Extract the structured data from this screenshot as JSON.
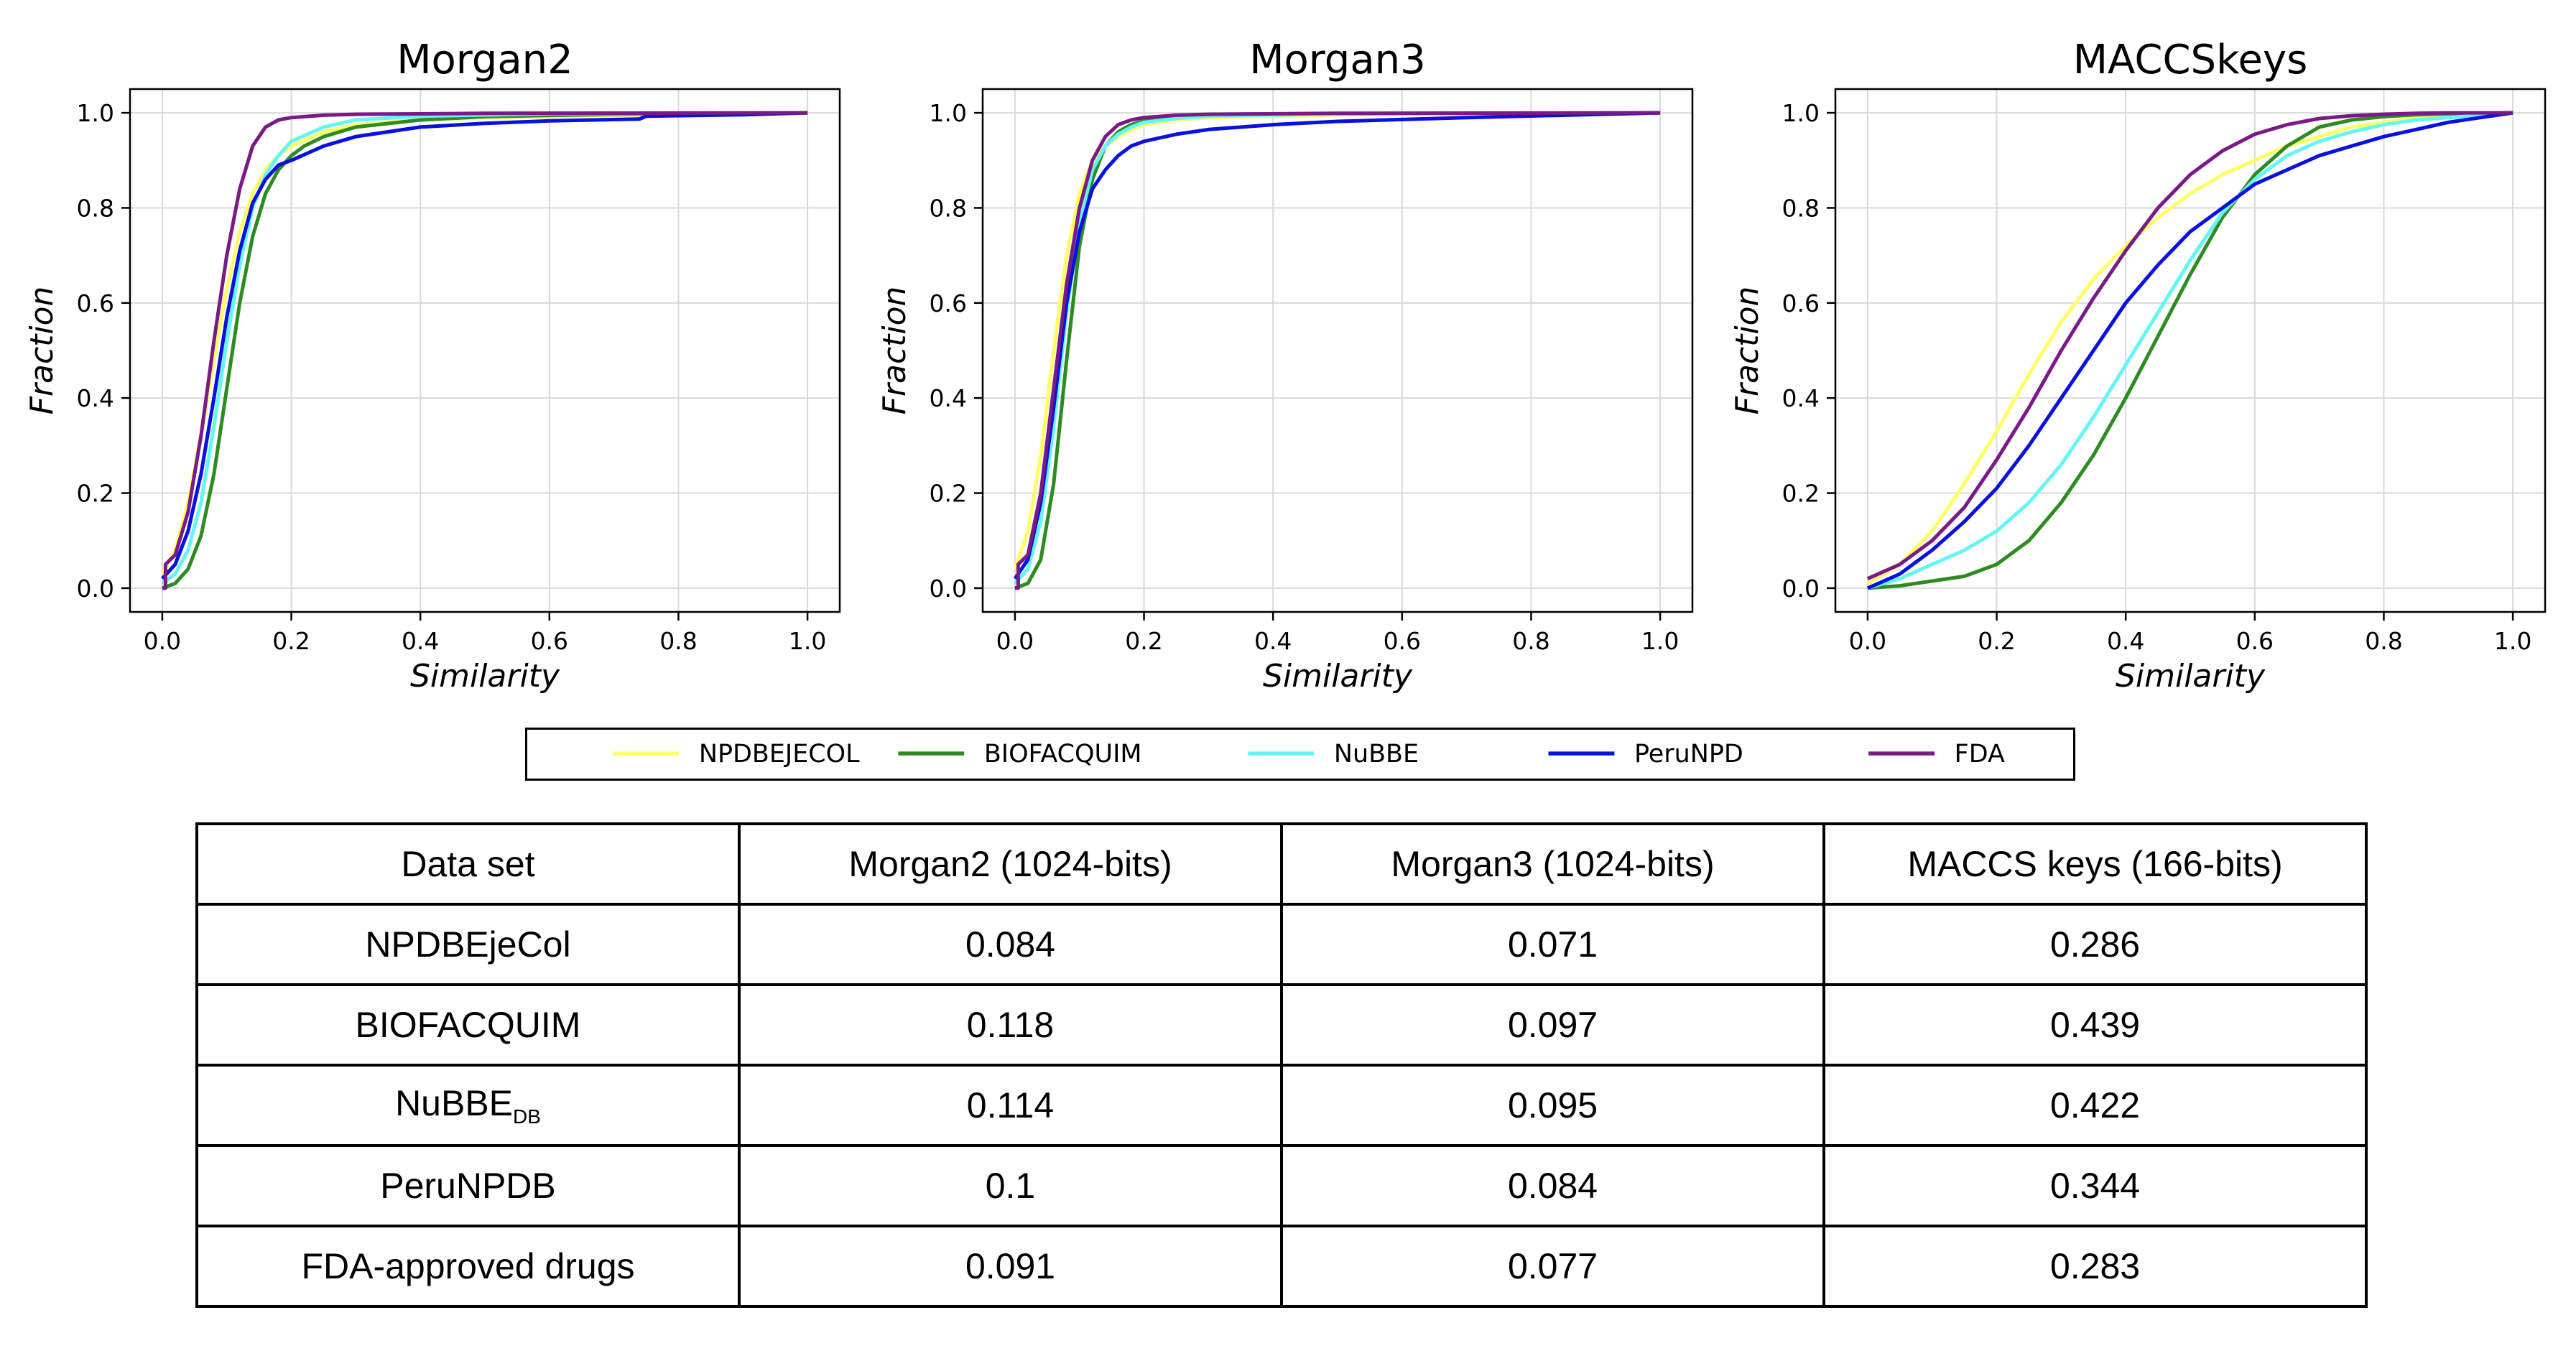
{
  "legend": [
    {
      "name": "NPDBEJECOL",
      "color": "#ffff66"
    },
    {
      "name": "BIOFACQUIM",
      "color": "#2e8b22"
    },
    {
      "name": "NuBBE",
      "color": "#66f5f5"
    },
    {
      "name": "PeruNPD",
      "color": "#0a10e0"
    },
    {
      "name": "FDA",
      "color": "#7a1a86"
    }
  ],
  "chart_data": [
    {
      "type": "line",
      "title": "Morgan2",
      "xlabel": "Similarity",
      "ylabel": "Fraction",
      "xlim": [
        -0.05,
        1.05
      ],
      "ylim": [
        -0.05,
        1.05
      ],
      "xticks": [
        "0.0",
        "0.2",
        "0.4",
        "0.6",
        "0.8",
        "1.0"
      ],
      "yticks": [
        "0.0",
        "0.2",
        "0.4",
        "0.6",
        "0.8",
        "1.0"
      ],
      "grid": true,
      "series": [
        {
          "name": "NPDBEJECOL",
          "color": "#ffff66",
          "x": [
            0,
            0.02,
            0.04,
            0.06,
            0.08,
            0.1,
            0.12,
            0.14,
            0.16,
            0.18,
            0.2,
            0.25,
            0.3,
            0.4,
            0.5,
            0.7,
            1.0
          ],
          "y": [
            0.03,
            0.08,
            0.18,
            0.32,
            0.48,
            0.63,
            0.75,
            0.83,
            0.88,
            0.91,
            0.93,
            0.96,
            0.975,
            0.985,
            0.99,
            0.995,
            1.0
          ]
        },
        {
          "name": "BIOFACQUIM",
          "color": "#2e8b22",
          "x": [
            0,
            0.02,
            0.04,
            0.06,
            0.08,
            0.1,
            0.12,
            0.14,
            0.16,
            0.18,
            0.2,
            0.22,
            0.25,
            0.3,
            0.4,
            0.5,
            0.7,
            1.0
          ],
          "y": [
            0.0,
            0.01,
            0.04,
            0.11,
            0.24,
            0.42,
            0.6,
            0.74,
            0.83,
            0.88,
            0.91,
            0.93,
            0.95,
            0.97,
            0.985,
            0.992,
            0.997,
            1.0
          ]
        },
        {
          "name": "NuBBE",
          "color": "#66f5f5",
          "x": [
            0,
            0.02,
            0.04,
            0.06,
            0.08,
            0.1,
            0.12,
            0.14,
            0.16,
            0.18,
            0.2,
            0.25,
            0.3,
            0.4,
            0.6,
            1.0
          ],
          "y": [
            0.01,
            0.03,
            0.08,
            0.18,
            0.34,
            0.52,
            0.68,
            0.8,
            0.87,
            0.91,
            0.94,
            0.97,
            0.985,
            0.993,
            0.998,
            1.0
          ]
        },
        {
          "name": "PeruNPD",
          "color": "#0a10e0",
          "x": [
            0,
            0.02,
            0.04,
            0.06,
            0.08,
            0.1,
            0.12,
            0.14,
            0.16,
            0.18,
            0.2,
            0.25,
            0.3,
            0.4,
            0.5,
            0.6,
            0.74,
            0.75,
            0.9,
            1.0
          ],
          "y": [
            0.02,
            0.05,
            0.12,
            0.24,
            0.4,
            0.57,
            0.71,
            0.81,
            0.86,
            0.89,
            0.9,
            0.93,
            0.95,
            0.97,
            0.978,
            0.983,
            0.987,
            0.993,
            0.996,
            1.0
          ]
        },
        {
          "name": "FDA",
          "color": "#7a1a86",
          "x": [
            0,
            0.005,
            0.005,
            0.02,
            0.04,
            0.06,
            0.08,
            0.1,
            0.12,
            0.14,
            0.16,
            0.18,
            0.2,
            0.25,
            0.3,
            0.5,
            1.0
          ],
          "y": [
            0.0,
            0.0,
            0.05,
            0.07,
            0.16,
            0.32,
            0.52,
            0.7,
            0.84,
            0.93,
            0.97,
            0.985,
            0.99,
            0.995,
            0.997,
            0.999,
            1.0
          ]
        }
      ]
    },
    {
      "type": "line",
      "title": "Morgan3",
      "xlabel": "Similarity",
      "ylabel": "Fraction",
      "xlim": [
        -0.05,
        1.05
      ],
      "ylim": [
        -0.05,
        1.05
      ],
      "xticks": [
        "0.0",
        "0.2",
        "0.4",
        "0.6",
        "0.8",
        "1.0"
      ],
      "yticks": [
        "0.0",
        "0.2",
        "0.4",
        "0.6",
        "0.8",
        "1.0"
      ],
      "grid": true,
      "series": [
        {
          "name": "NPDBEJECOL",
          "color": "#ffff66",
          "x": [
            0,
            0.02,
            0.04,
            0.06,
            0.08,
            0.1,
            0.12,
            0.14,
            0.16,
            0.18,
            0.2,
            0.25,
            0.3,
            0.5,
            1.0
          ],
          "y": [
            0.04,
            0.12,
            0.28,
            0.5,
            0.7,
            0.83,
            0.9,
            0.93,
            0.95,
            0.965,
            0.975,
            0.985,
            0.99,
            0.996,
            1.0
          ]
        },
        {
          "name": "BIOFACQUIM",
          "color": "#2e8b22",
          "x": [
            0,
            0.02,
            0.04,
            0.06,
            0.08,
            0.1,
            0.12,
            0.14,
            0.16,
            0.18,
            0.2,
            0.25,
            0.3,
            0.5,
            1.0
          ],
          "y": [
            0.0,
            0.01,
            0.06,
            0.22,
            0.48,
            0.72,
            0.86,
            0.93,
            0.96,
            0.975,
            0.983,
            0.99,
            0.994,
            0.998,
            1.0
          ]
        },
        {
          "name": "NuBBE",
          "color": "#66f5f5",
          "x": [
            0,
            0.02,
            0.04,
            0.06,
            0.08,
            0.1,
            0.12,
            0.14,
            0.16,
            0.18,
            0.2,
            0.25,
            0.3,
            0.5,
            1.0
          ],
          "y": [
            0.01,
            0.04,
            0.14,
            0.34,
            0.58,
            0.77,
            0.88,
            0.93,
            0.955,
            0.97,
            0.98,
            0.988,
            0.993,
            0.998,
            1.0
          ]
        },
        {
          "name": "PeruNPD",
          "color": "#0a10e0",
          "x": [
            0,
            0.02,
            0.04,
            0.06,
            0.08,
            0.1,
            0.12,
            0.14,
            0.16,
            0.18,
            0.2,
            0.25,
            0.3,
            0.4,
            0.5,
            0.7,
            1.0
          ],
          "y": [
            0.02,
            0.06,
            0.18,
            0.38,
            0.6,
            0.75,
            0.84,
            0.88,
            0.91,
            0.93,
            0.94,
            0.955,
            0.965,
            0.975,
            0.982,
            0.99,
            1.0
          ]
        },
        {
          "name": "FDA",
          "color": "#7a1a86",
          "x": [
            0,
            0.005,
            0.005,
            0.02,
            0.04,
            0.06,
            0.08,
            0.1,
            0.12,
            0.14,
            0.16,
            0.18,
            0.2,
            0.25,
            0.3,
            0.5,
            1.0
          ],
          "y": [
            0.0,
            0.0,
            0.05,
            0.07,
            0.2,
            0.42,
            0.64,
            0.8,
            0.9,
            0.95,
            0.975,
            0.985,
            0.99,
            0.995,
            0.997,
            0.999,
            1.0
          ]
        }
      ]
    },
    {
      "type": "line",
      "title": "MACCSkeys",
      "xlabel": "Similarity",
      "ylabel": "Fraction",
      "xlim": [
        -0.05,
        1.05
      ],
      "ylim": [
        -0.05,
        1.05
      ],
      "xticks": [
        "0.0",
        "0.2",
        "0.4",
        "0.6",
        "0.8",
        "1.0"
      ],
      "yticks": [
        "0.0",
        "0.2",
        "0.4",
        "0.6",
        "0.8",
        "1.0"
      ],
      "grid": true,
      "series": [
        {
          "name": "NPDBEJECOL",
          "color": "#ffff66",
          "x": [
            0,
            0.05,
            0.1,
            0.15,
            0.2,
            0.25,
            0.3,
            0.35,
            0.4,
            0.45,
            0.5,
            0.55,
            0.6,
            0.65,
            0.7,
            0.75,
            0.8,
            0.85,
            0.9,
            0.95,
            1.0
          ],
          "y": [
            0.01,
            0.05,
            0.12,
            0.22,
            0.33,
            0.45,
            0.56,
            0.65,
            0.72,
            0.78,
            0.83,
            0.87,
            0.9,
            0.93,
            0.95,
            0.97,
            0.98,
            0.99,
            0.995,
            0.998,
            1.0
          ]
        },
        {
          "name": "BIOFACQUIM",
          "color": "#2e8b22",
          "x": [
            0,
            0.05,
            0.1,
            0.15,
            0.2,
            0.25,
            0.3,
            0.35,
            0.4,
            0.45,
            0.5,
            0.55,
            0.6,
            0.65,
            0.7,
            0.75,
            0.8,
            0.85,
            0.9,
            0.95,
            1.0
          ],
          "y": [
            0.0,
            0.005,
            0.015,
            0.025,
            0.05,
            0.1,
            0.18,
            0.28,
            0.4,
            0.53,
            0.66,
            0.78,
            0.87,
            0.93,
            0.97,
            0.985,
            0.992,
            0.996,
            0.998,
            0.999,
            1.0
          ]
        },
        {
          "name": "NuBBE",
          "color": "#66f5f5",
          "x": [
            0,
            0.05,
            0.1,
            0.15,
            0.2,
            0.25,
            0.3,
            0.35,
            0.4,
            0.45,
            0.5,
            0.55,
            0.6,
            0.65,
            0.7,
            0.75,
            0.8,
            0.85,
            0.9,
            0.95,
            1.0
          ],
          "y": [
            0.0,
            0.02,
            0.05,
            0.08,
            0.12,
            0.18,
            0.26,
            0.36,
            0.47,
            0.58,
            0.69,
            0.79,
            0.86,
            0.91,
            0.94,
            0.96,
            0.975,
            0.985,
            0.99,
            0.995,
            1.0
          ]
        },
        {
          "name": "PeruNPD",
          "color": "#0a10e0",
          "x": [
            0,
            0.05,
            0.1,
            0.15,
            0.2,
            0.25,
            0.3,
            0.35,
            0.4,
            0.45,
            0.5,
            0.55,
            0.6,
            0.65,
            0.7,
            0.75,
            0.8,
            0.85,
            0.9,
            0.95,
            1.0
          ],
          "y": [
            0.0,
            0.03,
            0.08,
            0.14,
            0.21,
            0.3,
            0.4,
            0.5,
            0.6,
            0.68,
            0.75,
            0.8,
            0.85,
            0.88,
            0.91,
            0.93,
            0.95,
            0.965,
            0.98,
            0.99,
            1.0
          ]
        },
        {
          "name": "FDA",
          "color": "#7a1a86",
          "x": [
            0,
            0.05,
            0.1,
            0.15,
            0.2,
            0.25,
            0.3,
            0.35,
            0.4,
            0.45,
            0.5,
            0.55,
            0.6,
            0.65,
            0.7,
            0.75,
            0.8,
            0.85,
            0.9,
            0.95,
            1.0
          ],
          "y": [
            0.02,
            0.05,
            0.1,
            0.17,
            0.27,
            0.38,
            0.5,
            0.61,
            0.71,
            0.8,
            0.87,
            0.92,
            0.955,
            0.975,
            0.988,
            0.994,
            0.997,
            0.999,
            1.0,
            1.0,
            1.0
          ]
        }
      ]
    },
    {
      "type": "table",
      "columns": [
        "Data set",
        "Morgan2 (1024-bits)",
        "Morgan3 (1024-bits)",
        "MACCS keys (166-bits)"
      ],
      "rows": [
        {
          "dataset": "NPDBEjeCol",
          "dataset_sub": "",
          "morgan2": "0.084",
          "morgan3": "0.071",
          "maccs": "0.286"
        },
        {
          "dataset": "BIOFACQUIM",
          "dataset_sub": "",
          "morgan2": "0.118",
          "morgan3": "0.097",
          "maccs": "0.439"
        },
        {
          "dataset": "NuBBE",
          "dataset_sub": "DB",
          "morgan2": "0.114",
          "morgan3": "0.095",
          "maccs": "0.422"
        },
        {
          "dataset": "PeruNPDB",
          "dataset_sub": "",
          "morgan2": "0.1",
          "morgan3": "0.084",
          "maccs": "0.344"
        },
        {
          "dataset": "FDA-approved drugs",
          "dataset_sub": "",
          "morgan2": "0.091",
          "morgan3": "0.077",
          "maccs": "0.283"
        }
      ]
    }
  ]
}
